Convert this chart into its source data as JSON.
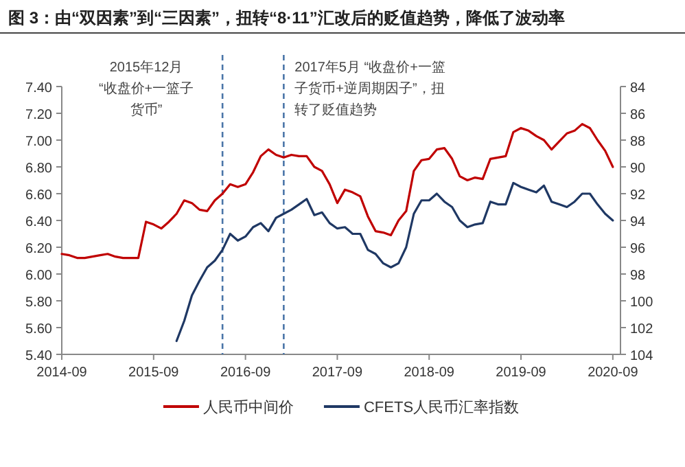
{
  "chart_data": {
    "type": "line",
    "title": "图 3：由“双因素”到“三因素”，扭转“8·11”汇改后的贬值趋势，降低了波动率",
    "xlim": [
      "2014-09",
      "2020-10"
    ],
    "xticks": [
      "2014-09",
      "2015-09",
      "2016-09",
      "2017-09",
      "2018-09",
      "2019-09",
      "2020-09"
    ],
    "ylim": [
      5.4,
      7.4
    ],
    "yticks": [
      {
        "value": 5.4,
        "label": "5.40"
      },
      {
        "value": 5.6,
        "label": "5.60"
      },
      {
        "value": 5.8,
        "label": "5.80"
      },
      {
        "value": 6.0,
        "label": "6.00"
      },
      {
        "value": 6.2,
        "label": "6.20"
      },
      {
        "value": 6.4,
        "label": "6.40"
      },
      {
        "value": 6.6,
        "label": "6.60"
      },
      {
        "value": 6.8,
        "label": "6.80"
      },
      {
        "value": 7.0,
        "label": "7.00"
      },
      {
        "value": 7.2,
        "label": "7.20"
      },
      {
        "value": 7.4,
        "label": "7.40"
      }
    ],
    "y2lim": [
      104,
      84
    ],
    "y2ticks": [
      84,
      86,
      88,
      90,
      92,
      94,
      96,
      98,
      100,
      102,
      104
    ],
    "legend": "bottom",
    "grid": false,
    "marker": "none",
    "line_style": "solid",
    "ref_lines": [
      {
        "axis": "x",
        "value": "2016-06",
        "label": "2015年12月 “收盘价+一篮子货币”",
        "color": "#4a75a8",
        "line_style": "dashed"
      },
      {
        "axis": "x",
        "value": "2017-02",
        "label": "2017年5月 “收盘价+一篮子货币+逆周期因子”，扭转了贬值趋势",
        "color": "#4a75a8",
        "line_style": "dashed"
      }
    ],
    "series": [
      {
        "name": "人民币中间价",
        "color": "#c00000",
        "x": [
          "2014-09",
          "2014-10",
          "2014-11",
          "2014-12",
          "2015-01",
          "2015-02",
          "2015-03",
          "2015-04",
          "2015-05",
          "2015-06",
          "2015-07",
          "2015-08",
          "2015-09",
          "2015-10",
          "2015-11",
          "2015-12",
          "2016-01",
          "2016-02",
          "2016-03",
          "2016-04",
          "2016-05",
          "2016-06",
          "2016-07",
          "2016-08",
          "2016-09",
          "2016-10",
          "2016-11",
          "2016-12",
          "2017-01",
          "2017-02",
          "2017-03",
          "2017-04",
          "2017-05",
          "2017-06",
          "2017-07",
          "2017-08",
          "2017-09",
          "2017-10",
          "2017-11",
          "2017-12",
          "2018-01",
          "2018-02",
          "2018-03",
          "2018-04",
          "2018-05",
          "2018-06",
          "2018-07",
          "2018-08",
          "2018-09",
          "2018-10",
          "2018-11",
          "2018-12",
          "2019-01",
          "2019-02",
          "2019-03",
          "2019-04",
          "2019-05",
          "2019-06",
          "2019-07",
          "2019-08",
          "2019-09",
          "2019-10",
          "2019-11",
          "2019-12",
          "2020-01",
          "2020-02",
          "2020-03",
          "2020-04",
          "2020-05",
          "2020-06",
          "2020-07",
          "2020-08",
          "2020-09"
        ],
        "values": [
          6.15,
          6.14,
          6.12,
          6.12,
          6.13,
          6.14,
          6.15,
          6.13,
          6.12,
          6.12,
          6.12,
          6.39,
          6.37,
          6.34,
          6.39,
          6.45,
          6.55,
          6.53,
          6.48,
          6.47,
          6.55,
          6.6,
          6.67,
          6.65,
          6.67,
          6.76,
          6.88,
          6.93,
          6.89,
          6.87,
          6.89,
          6.88,
          6.88,
          6.8,
          6.77,
          6.67,
          6.53,
          6.63,
          6.61,
          6.58,
          6.43,
          6.32,
          6.31,
          6.29,
          6.4,
          6.47,
          6.77,
          6.85,
          6.86,
          6.93,
          6.94,
          6.86,
          6.73,
          6.7,
          6.72,
          6.71,
          6.86,
          6.87,
          6.88,
          7.06,
          7.09,
          7.07,
          7.03,
          7.0,
          6.93,
          6.99,
          7.05,
          7.07,
          7.12,
          7.09,
          7.0,
          6.92,
          6.8
        ]
      },
      {
        "name": "CFETS人民币汇率指数",
        "color": "#1f3864",
        "axis": "y2",
        "x": [
          "2015-12",
          "2016-01",
          "2016-02",
          "2016-03",
          "2016-04",
          "2016-05",
          "2016-06",
          "2016-07",
          "2016-08",
          "2016-09",
          "2016-10",
          "2016-11",
          "2016-12",
          "2017-01",
          "2017-02",
          "2017-03",
          "2017-04",
          "2017-05",
          "2017-06",
          "2017-07",
          "2017-08",
          "2017-09",
          "2017-10",
          "2017-11",
          "2017-12",
          "2018-01",
          "2018-02",
          "2018-03",
          "2018-04",
          "2018-05",
          "2018-06",
          "2018-07",
          "2018-08",
          "2018-09",
          "2018-10",
          "2018-11",
          "2018-12",
          "2019-01",
          "2019-02",
          "2019-03",
          "2019-04",
          "2019-05",
          "2019-06",
          "2019-07",
          "2019-08",
          "2019-09",
          "2019-10",
          "2019-11",
          "2019-12",
          "2020-01",
          "2020-02",
          "2020-03",
          "2020-04",
          "2020-05",
          "2020-06",
          "2020-07",
          "2020-08",
          "2020-09"
        ],
        "values": [
          103.0,
          101.5,
          99.6,
          98.5,
          97.5,
          97.0,
          96.2,
          95.0,
          95.5,
          95.2,
          94.5,
          94.2,
          94.8,
          93.8,
          93.5,
          93.2,
          92.8,
          92.4,
          93.6,
          93.4,
          94.2,
          94.6,
          94.5,
          95.0,
          95.0,
          96.2,
          96.5,
          97.2,
          97.5,
          97.2,
          96.0,
          93.5,
          92.5,
          92.5,
          92.0,
          92.6,
          93.0,
          94.0,
          94.5,
          94.3,
          94.2,
          92.6,
          92.8,
          92.8,
          91.2,
          91.5,
          91.7,
          91.9,
          91.4,
          92.6,
          92.8,
          93.0,
          92.6,
          92.0,
          92.0,
          92.8,
          93.5,
          94.0
        ]
      }
    ]
  }
}
